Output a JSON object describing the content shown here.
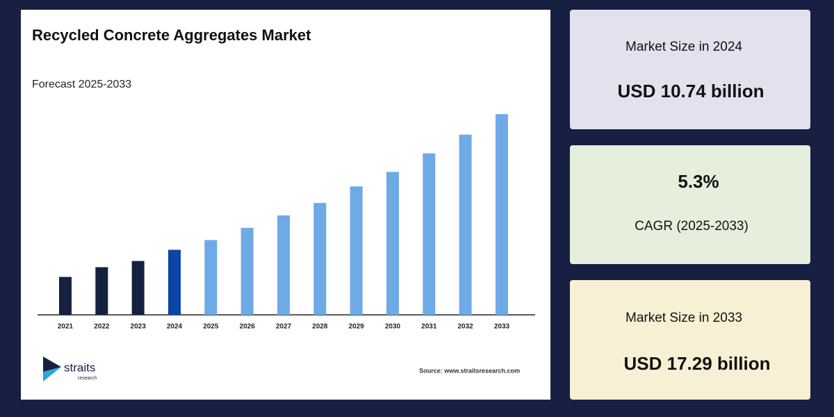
{
  "chart_data": {
    "type": "bar",
    "title": "Recycled Concrete Aggregates Market",
    "subtitle": "Forecast 2025-2033",
    "categories": [
      "2021",
      "2022",
      "2023",
      "2024",
      "2025",
      "2026",
      "2027",
      "2028",
      "2029",
      "2030",
      "2031",
      "2032",
      "2033"
    ],
    "values": [
      9.43,
      9.9,
      10.2,
      10.74,
      11.21,
      11.8,
      12.4,
      13.0,
      13.8,
      14.5,
      15.4,
      16.3,
      17.29
    ],
    "colors": [
      "#16213f",
      "#16213f",
      "#16213f",
      "#0b45a8",
      "#6eaae6",
      "#6eaae6",
      "#6eaae6",
      "#6eaae6",
      "#6eaae6",
      "#6eaae6",
      "#6eaae6",
      "#6eaae6",
      "#6eaae6"
    ],
    "ylim": [
      7.6,
      17.6
    ],
    "source": "Source: www.straitsresearch.com"
  },
  "logo": {
    "name": "straits",
    "tagline": "research"
  },
  "cards": [
    {
      "label": "Market Size in 2024",
      "value": "USD 10.74 billion"
    },
    {
      "value": "5.3%",
      "label": "CAGR (2025-2033)"
    },
    {
      "label": "Market Size in 2033",
      "value": "USD 17.29 billion"
    }
  ]
}
